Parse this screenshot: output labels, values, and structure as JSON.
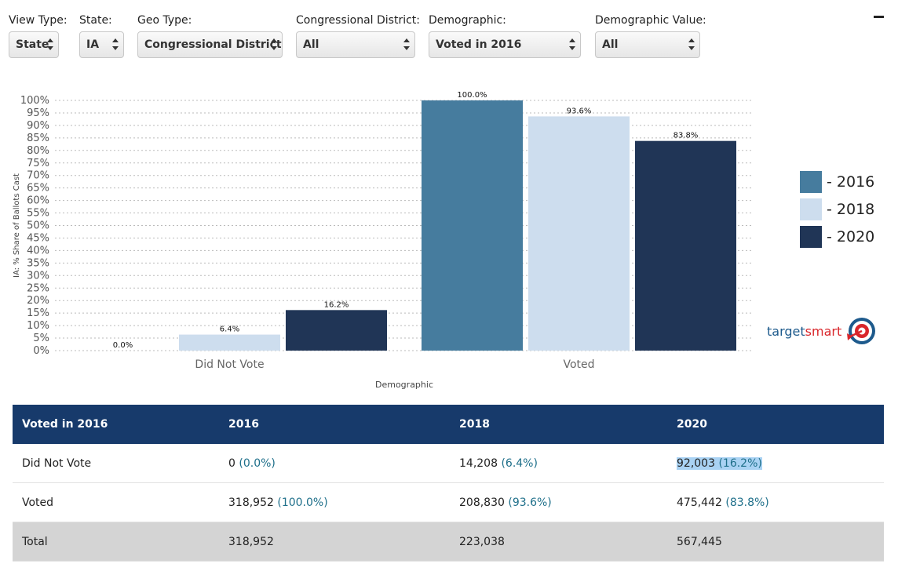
{
  "filters": [
    {
      "label": "View Type:",
      "value": "State"
    },
    {
      "label": "State:",
      "value": "IA"
    },
    {
      "label": "Geo Type:",
      "value": "Congressional District"
    },
    {
      "label": "Congressional District:",
      "value": "All"
    },
    {
      "label": "Demographic:",
      "value": "Voted in 2016"
    },
    {
      "label": "Demographic Value:",
      "value": "All"
    }
  ],
  "legend": [
    {
      "label": "- 2016",
      "color": "#467c9e"
    },
    {
      "label": "- 2018",
      "color": "#cdddee"
    },
    {
      "label": "- 2020",
      "color": "#203556"
    }
  ],
  "brand": {
    "text_main": "target",
    "text_accent": "smart"
  },
  "chart_data": {
    "type": "bar",
    "xlabel": "Demographic",
    "ylabel": "IA: % Share of Ballots Cast",
    "ylim": [
      0,
      100
    ],
    "yticks": [
      "0%",
      "5%",
      "10%",
      "15%",
      "20%",
      "25%",
      "30%",
      "35%",
      "40%",
      "45%",
      "50%",
      "55%",
      "60%",
      "65%",
      "70%",
      "75%",
      "80%",
      "85%",
      "90%",
      "95%",
      "100%"
    ],
    "categories": [
      "Did Not Vote",
      "Voted"
    ],
    "series": [
      {
        "name": "2016",
        "color": "#467c9e",
        "values": [
          0.0,
          100.0
        ],
        "labels": [
          "0.0%",
          "100.0%"
        ]
      },
      {
        "name": "2018",
        "color": "#cdddee",
        "values": [
          6.4,
          93.6
        ],
        "labels": [
          "6.4%",
          "93.6%"
        ]
      },
      {
        "name": "2020",
        "color": "#203556",
        "values": [
          16.2,
          83.8
        ],
        "labels": [
          "16.2%",
          "83.8%"
        ]
      }
    ],
    "grid": true
  },
  "table": {
    "headers": [
      "Voted in 2016",
      "2016",
      "2018",
      "2020"
    ],
    "rows": [
      {
        "label": "Did Not Vote",
        "cells": [
          [
            "0",
            "(0.0%)"
          ],
          [
            "14,208",
            "(6.4%)"
          ],
          [
            "92,003",
            "(16.2%)"
          ]
        ]
      },
      {
        "label": "Voted",
        "cells": [
          [
            "318,952",
            "(100.0%)"
          ],
          [
            "208,830",
            "(93.6%)"
          ],
          [
            "475,442",
            "(83.8%)"
          ]
        ]
      }
    ],
    "total": {
      "label": "Total",
      "cells": [
        "318,952",
        "223,038",
        "567,445"
      ]
    }
  }
}
